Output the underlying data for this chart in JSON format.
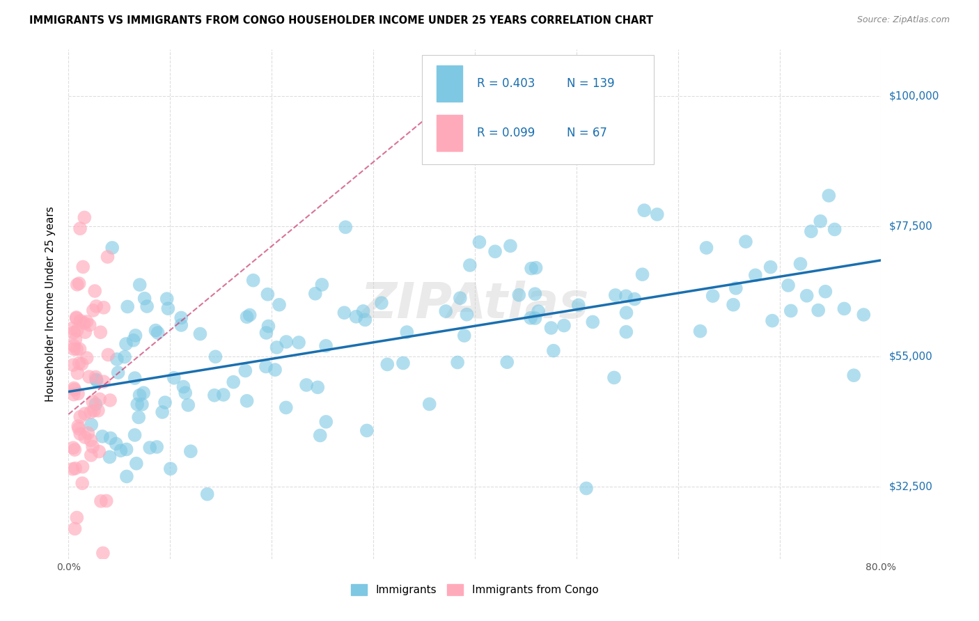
{
  "title": "IMMIGRANTS VS IMMIGRANTS FROM CONGO HOUSEHOLDER INCOME UNDER 25 YEARS CORRELATION CHART",
  "source": "Source: ZipAtlas.com",
  "ylabel": "Householder Income Under 25 years",
  "xlim": [
    0.0,
    0.8
  ],
  "ylim": [
    20000,
    108000
  ],
  "ytick_labels": [
    "$32,500",
    "$55,000",
    "$77,500",
    "$100,000"
  ],
  "ytick_values": [
    32500,
    55000,
    77500,
    100000
  ],
  "legend_R1": "0.403",
  "legend_N1": "139",
  "legend_R2": "0.099",
  "legend_N2": "67",
  "color_blue": "#7ec8e3",
  "color_pink": "#ffaabb",
  "color_blue_line": "#1a6faf",
  "color_pink_line": "#cc4477",
  "background_color": "#ffffff",
  "grid_color": "#dddddd",
  "watermark": "ZIPAtlas"
}
